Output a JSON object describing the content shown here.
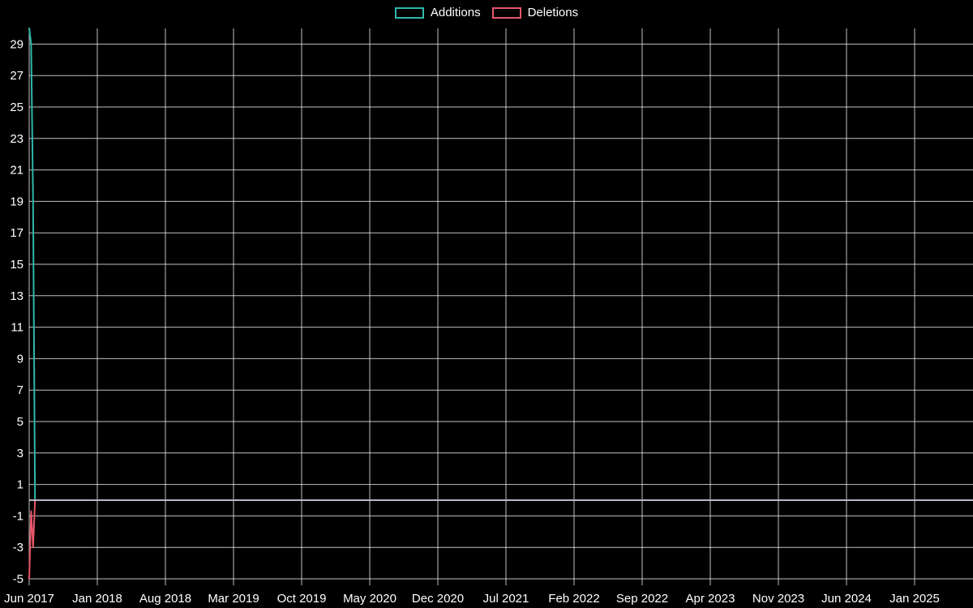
{
  "legend": {
    "items": [
      {
        "label": "Additions",
        "color": "#2fb8ac"
      },
      {
        "label": "Deletions",
        "color": "#e8566a"
      }
    ]
  },
  "chart_data": {
    "type": "line",
    "title": "",
    "xlabel": "",
    "ylabel": "",
    "background": "#000000",
    "text_color": "#ffffff",
    "grid": {
      "on": true,
      "color": "#ffffff",
      "opacity": 0.75
    },
    "legend_position": "top-center",
    "x_axis": {
      "unit": "month",
      "start_label": "Jun 2017",
      "tick_interval_months": 7,
      "tick_labels": [
        "Jun 2017",
        "Jan 2018",
        "Aug 2018",
        "Mar 2019",
        "Oct 2019",
        "May 2020",
        "Dec 2020",
        "Jul 2021",
        "Feb 2022",
        "Sep 2022",
        "Apr 2023",
        "Nov 2023",
        "Jun 2024",
        "Jan 2025"
      ]
    },
    "y_axis": {
      "min": -5,
      "max": 30,
      "tick_values": [
        -5,
        -3,
        -1,
        1,
        3,
        5,
        7,
        9,
        11,
        13,
        15,
        17,
        19,
        21,
        23,
        25,
        27,
        29
      ]
    },
    "ylim": [
      -5,
      30
    ],
    "zero_line": {
      "value": 0,
      "color": "#b9b9c9"
    },
    "series": [
      {
        "name": "Additions",
        "color": "#2fb8ac",
        "points": [
          {
            "m": 0.0,
            "v": 30
          },
          {
            "m": 0.2,
            "v": 29
          },
          {
            "m": 0.4,
            "v": 19
          },
          {
            "m": 0.6,
            "v": 0
          },
          {
            "m": 97.0,
            "v": 0
          }
        ]
      },
      {
        "name": "Deletions",
        "color": "#e8566a",
        "points": [
          {
            "m": 0.0,
            "v": -5
          },
          {
            "m": 0.2,
            "v": -0.7
          },
          {
            "m": 0.4,
            "v": -3
          },
          {
            "m": 0.6,
            "v": 0
          },
          {
            "m": 97.0,
            "v": 0
          }
        ]
      }
    ]
  }
}
